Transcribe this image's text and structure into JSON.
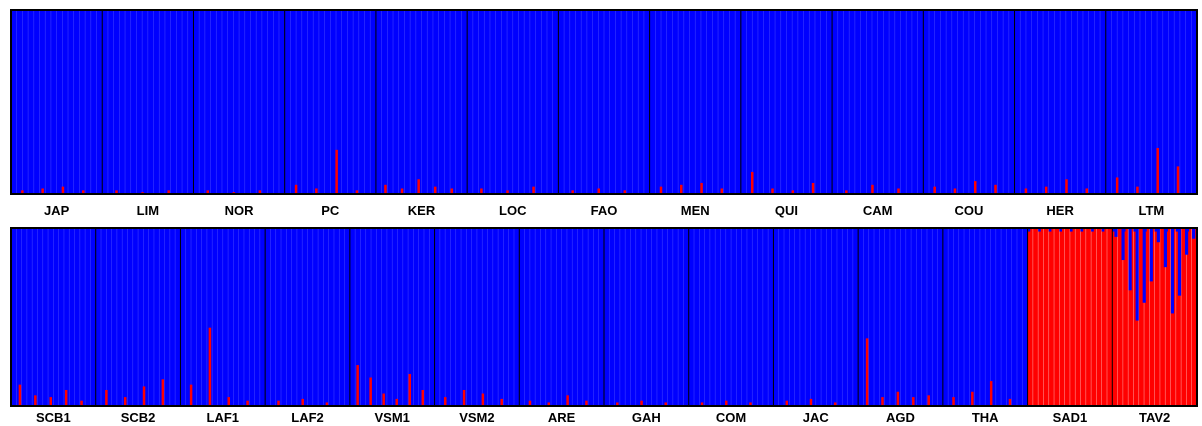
{
  "chart_data": [
    {
      "type": "bar",
      "stacked": true,
      "panel": "top",
      "ylim": [
        0,
        1
      ],
      "series_colors": {
        "cluster_1": "#0000ff",
        "cluster_2": "#ff0000"
      },
      "populations": [
        {
          "label": "JAP",
          "red_peaks": [
            0.02,
            0.03,
            0.04,
            0.02
          ]
        },
        {
          "label": "LIM",
          "red_peaks": [
            0.02,
            0.01,
            0.02
          ]
        },
        {
          "label": "NOR",
          "red_peaks": [
            0.02,
            0.01,
            0.02
          ]
        },
        {
          "label": "PC",
          "red_peaks": [
            0.05,
            0.03,
            0.24,
            0.02
          ]
        },
        {
          "label": "KER",
          "red_peaks": [
            0.05,
            0.03,
            0.08,
            0.04,
            0.03
          ]
        },
        {
          "label": "LOC",
          "red_peaks": [
            0.03,
            0.02,
            0.04
          ]
        },
        {
          "label": "FAO",
          "red_peaks": [
            0.02,
            0.03,
            0.02
          ]
        },
        {
          "label": "MEN",
          "red_peaks": [
            0.04,
            0.05,
            0.06,
            0.03
          ]
        },
        {
          "label": "QUI",
          "red_peaks": [
            0.12,
            0.03,
            0.02,
            0.06
          ]
        },
        {
          "label": "CAM",
          "red_peaks": [
            0.02,
            0.05,
            0.03
          ]
        },
        {
          "label": "COU",
          "red_peaks": [
            0.04,
            0.03,
            0.07,
            0.05
          ]
        },
        {
          "label": "HER",
          "red_peaks": [
            0.03,
            0.04,
            0.08,
            0.03
          ]
        },
        {
          "label": "LTM",
          "red_peaks": [
            0.09,
            0.04,
            0.25,
            0.15
          ]
        }
      ]
    },
    {
      "type": "bar",
      "stacked": true,
      "panel": "bottom",
      "ylim": [
        0,
        1
      ],
      "series_colors": {
        "cluster_1": "#0000ff",
        "cluster_2": "#ff0000"
      },
      "populations": [
        {
          "label": "SCB1",
          "red_peaks": [
            0.12,
            0.06,
            0.05,
            0.09,
            0.03
          ]
        },
        {
          "label": "SCB2",
          "red_peaks": [
            0.09,
            0.05,
            0.11,
            0.15
          ]
        },
        {
          "label": "LAF1",
          "red_peaks": [
            0.12,
            0.44,
            0.05,
            0.03
          ]
        },
        {
          "label": "LAF2",
          "red_peaks": [
            0.03,
            0.04,
            0.02
          ]
        },
        {
          "label": "VSM1",
          "red_peaks": [
            0.23,
            0.16,
            0.07,
            0.04,
            0.18,
            0.09
          ]
        },
        {
          "label": "VSM2",
          "red_peaks": [
            0.05,
            0.09,
            0.07,
            0.04
          ]
        },
        {
          "label": "ARE",
          "red_peaks": [
            0.03,
            0.02,
            0.06,
            0.03
          ]
        },
        {
          "label": "GAH",
          "red_peaks": [
            0.02,
            0.03,
            0.02
          ]
        },
        {
          "label": "COM",
          "red_peaks": [
            0.02,
            0.03,
            0.02
          ]
        },
        {
          "label": "JAC",
          "red_peaks": [
            0.03,
            0.04,
            0.02
          ]
        },
        {
          "label": "AGD",
          "red_peaks": [
            0.38,
            0.05,
            0.08,
            0.05,
            0.06
          ]
        },
        {
          "label": "THA",
          "red_peaks": [
            0.05,
            0.08,
            0.14,
            0.04
          ]
        },
        {
          "label": "SAD1",
          "all_red": true
        },
        {
          "label": "TAV2",
          "all_red": true,
          "blue_top": [
            0.05,
            0.18,
            0.35,
            0.52,
            0.42,
            0.3,
            0.08,
            0.22,
            0.48,
            0.38,
            0.15,
            0.06
          ]
        }
      ]
    }
  ]
}
